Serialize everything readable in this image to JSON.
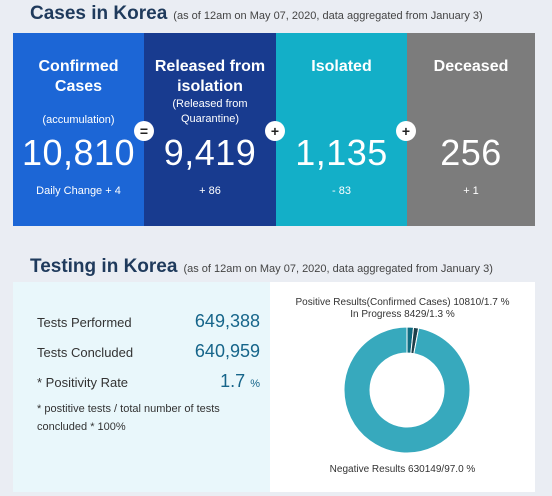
{
  "cases_section": {
    "title": "Cases in Korea",
    "note": "(as of 12am on May 07, 2020, data aggregated from January 3)"
  },
  "cards": {
    "confirmed": {
      "title": "Confirmed Cases",
      "sub": "(accumulation)",
      "value": "10,810",
      "delta": "Daily Change  + 4"
    },
    "released": {
      "title": "Released from isolation",
      "sub": "(Released from Quarantine)",
      "value": "9,419",
      "delta": "+ 86"
    },
    "isolated": {
      "title": "Isolated",
      "value": "1,135",
      "delta": "- 83"
    },
    "deceased": {
      "title": "Deceased",
      "value": "256",
      "delta": "+ 1"
    }
  },
  "operators": {
    "equals": "=",
    "plus": "+"
  },
  "testing_section": {
    "title": "Testing in Korea",
    "note": "(as of 12am on May 07, 2020, data aggregated from January 3)",
    "tests_performed_label": "Tests Performed",
    "tests_performed_value": "649,388",
    "tests_concluded_label": "Tests Concluded",
    "tests_concluded_value": "640,959",
    "positivity_label": "* Positivity Rate",
    "positivity_value": "1.7",
    "positivity_unit": "%",
    "footnote": "* postitive tests / total number of tests concluded * 100%"
  },
  "chart_data": {
    "type": "pie",
    "labels": [
      "Positive Results(Confirmed Cases) 10810/1.7 %",
      "In Progress 8429/1.3 %",
      "Negative Results 630149/97.0 %"
    ],
    "values": [
      10810,
      8429,
      630149
    ],
    "percents": [
      1.7,
      1.3,
      97.0
    ],
    "colors": [
      "#0f6b80",
      "#1d3f4a",
      "#37a9bd"
    ],
    "donut": true
  }
}
